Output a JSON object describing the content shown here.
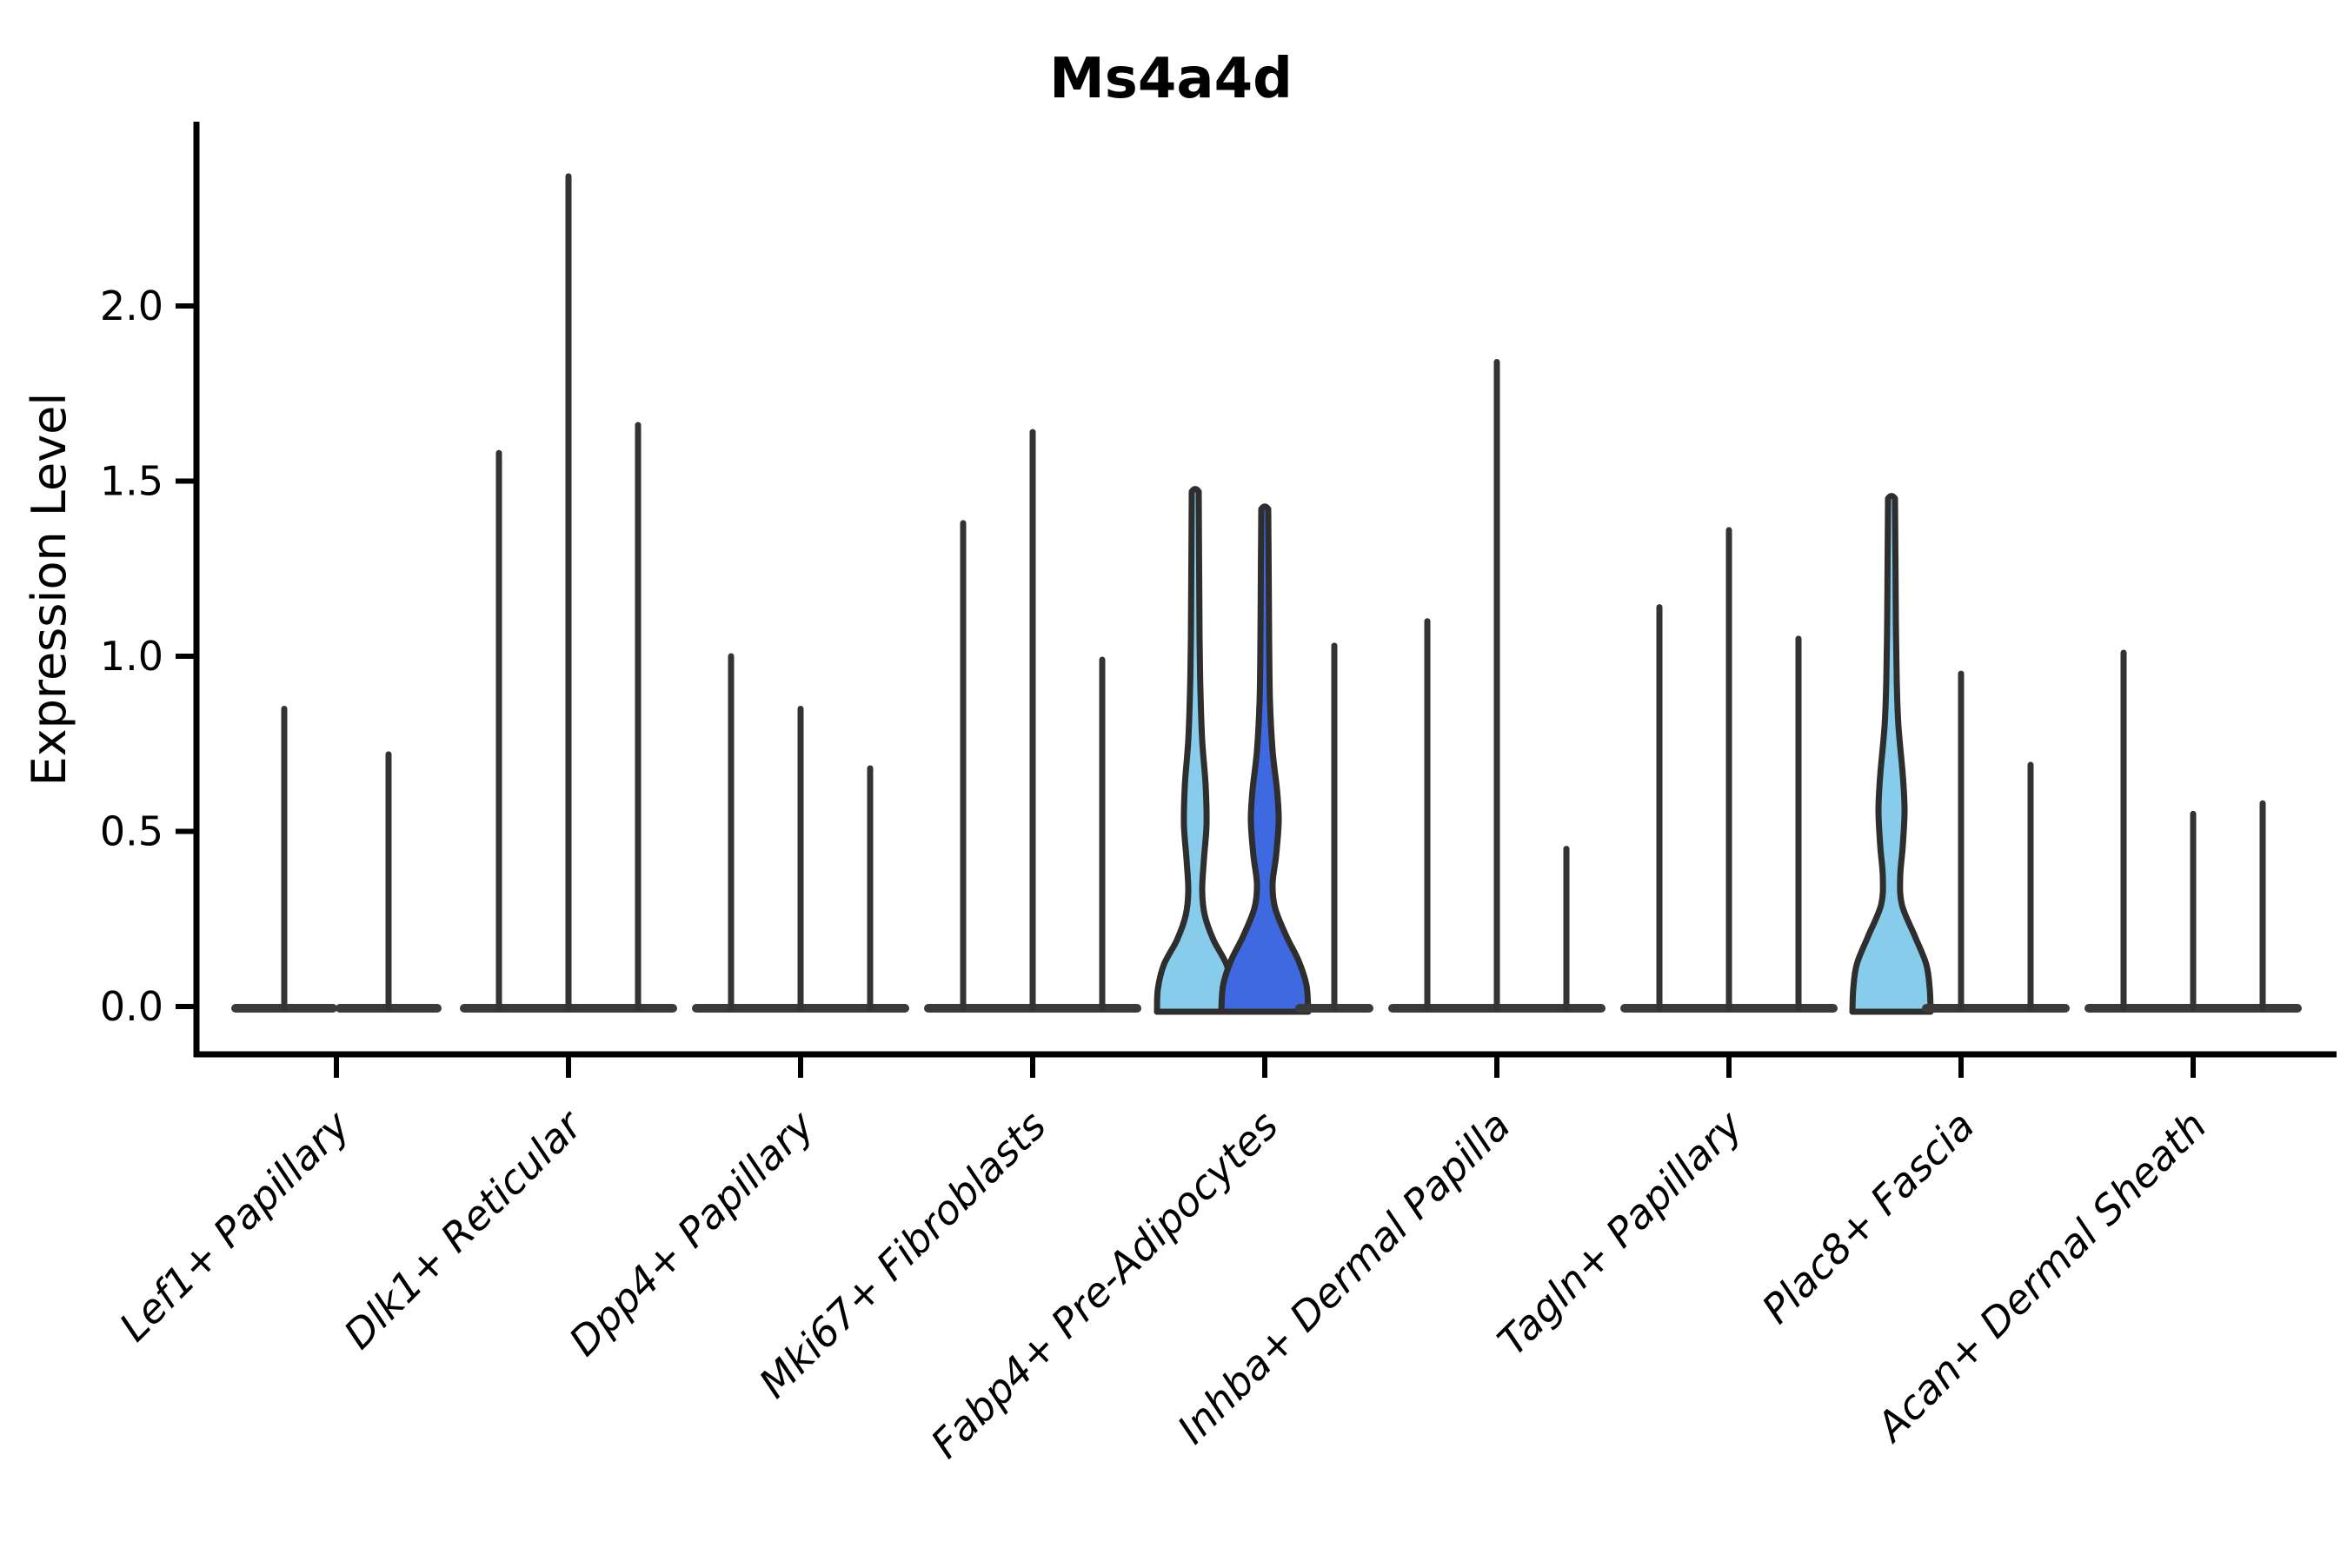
{
  "figure": {
    "background": "#ffffff"
  },
  "chart_data": {
    "type": "violin",
    "title": "Ms4a4d",
    "xlabel": "",
    "ylabel": "Expression Level",
    "ylim": [
      -0.14,
      2.52
    ],
    "yticks": [
      "0.0",
      "0.5",
      "1.0",
      "1.5",
      "2.0"
    ],
    "ytick_values": [
      0.0,
      0.5,
      1.0,
      1.5,
      2.0
    ],
    "grid": false,
    "legend": "none",
    "categories": [
      "Lef1+ Papillary",
      "Dlk1+ Reticular",
      "Dpp4+ Papillary",
      "Mki67+ Fibroblasts",
      "Fabp4+ Pre-Adipocytes",
      "Inhba+ Dermal Papilla",
      "Tagln+ Papillary",
      "Plac8+ Fascia",
      "Acan+ Dermal Sheath"
    ],
    "groups": [
      {
        "label": "Lef1+ Papillary",
        "violins": [
          {
            "max": 0.85,
            "fill": "none"
          },
          {
            "max": 0.72,
            "fill": "none"
          }
        ]
      },
      {
        "label": "Dlk1+ Reticular",
        "violins": [
          {
            "max": 1.58,
            "fill": "none"
          },
          {
            "max": 2.37,
            "fill": "none"
          },
          {
            "max": 1.66,
            "fill": "none"
          }
        ]
      },
      {
        "label": "Dpp4+ Papillary",
        "violins": [
          {
            "max": 1.0,
            "fill": "none"
          },
          {
            "max": 0.85,
            "fill": "none"
          },
          {
            "max": 0.68,
            "fill": "none"
          }
        ]
      },
      {
        "label": "Mki67+ Fibroblasts",
        "violins": [
          {
            "max": 1.38,
            "fill": "none"
          },
          {
            "max": 1.64,
            "fill": "none"
          },
          {
            "max": 0.99,
            "fill": "none"
          }
        ]
      },
      {
        "label": "Fabp4+ Pre-Adipocytes",
        "violins": [
          {
            "max": 1.47,
            "fill": "lightblue",
            "profile": [
              [
                0.0,
                44
              ],
              [
                0.05,
                43
              ],
              [
                0.12,
                36
              ],
              [
                0.19,
                21
              ],
              [
                0.26,
                11
              ],
              [
                0.33,
                8
              ],
              [
                0.42,
                10
              ],
              [
                0.52,
                13
              ],
              [
                0.63,
                12
              ],
              [
                0.76,
                8
              ],
              [
                0.9,
                6
              ],
              [
                1.05,
                5
              ],
              [
                1.25,
                4.5
              ],
              [
                1.47,
                4
              ]
            ]
          },
          {
            "max": 1.42,
            "fill": "darkblue",
            "profile": [
              [
                0.0,
                50
              ],
              [
                0.06,
                48
              ],
              [
                0.13,
                39
              ],
              [
                0.2,
                25
              ],
              [
                0.28,
                12
              ],
              [
                0.35,
                9
              ],
              [
                0.43,
                13
              ],
              [
                0.53,
                16
              ],
              [
                0.62,
                14
              ],
              [
                0.73,
                9
              ],
              [
                0.87,
                6
              ],
              [
                1.05,
                5
              ],
              [
                1.25,
                4.5
              ],
              [
                1.42,
                4
              ]
            ]
          },
          {
            "max": 1.03,
            "fill": "none"
          }
        ]
      },
      {
        "label": "Inhba+ Dermal Papilla",
        "violins": [
          {
            "max": 1.1,
            "fill": "none"
          },
          {
            "max": 1.84,
            "fill": "none"
          },
          {
            "max": 0.45,
            "fill": "none"
          }
        ]
      },
      {
        "label": "Tagln+ Papillary",
        "violins": [
          {
            "max": 1.14,
            "fill": "none"
          },
          {
            "max": 1.36,
            "fill": "none"
          },
          {
            "max": 1.05,
            "fill": "none"
          }
        ]
      },
      {
        "label": "Plac8+ Fascia",
        "violins": [
          {
            "max": 1.45,
            "fill": "lightblue",
            "profile": [
              [
                0.0,
                45
              ],
              [
                0.05,
                44
              ],
              [
                0.12,
                40
              ],
              [
                0.2,
                27
              ],
              [
                0.29,
                12
              ],
              [
                0.37,
                10
              ],
              [
                0.46,
                13
              ],
              [
                0.56,
                15
              ],
              [
                0.66,
                13
              ],
              [
                0.8,
                8
              ],
              [
                0.93,
                6
              ],
              [
                1.1,
                5
              ],
              [
                1.28,
                4.5
              ],
              [
                1.45,
                4
              ]
            ]
          },
          {
            "max": 0.95,
            "fill": "none"
          },
          {
            "max": 0.69,
            "fill": "none"
          }
        ]
      },
      {
        "label": "Acan+ Dermal Sheath",
        "violins": [
          {
            "max": 1.01,
            "fill": "none"
          },
          {
            "max": 0.55,
            "fill": "none"
          },
          {
            "max": 0.58,
            "fill": "none"
          }
        ]
      }
    ],
    "colors": {
      "lightblue": "#87CDEB",
      "darkblue": "#3F69E1",
      "outline": "#2e2e2e",
      "spike": "#333333",
      "baseline": "#3a3a3a",
      "axis": "#000000"
    }
  }
}
